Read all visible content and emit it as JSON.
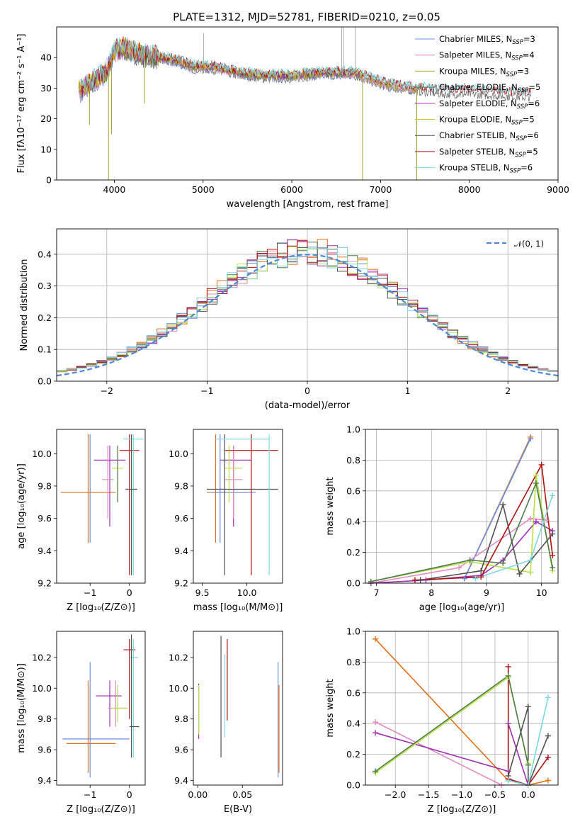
{
  "title": "PLATE=1312, MJD=52781, FIBERID=0210, z=0.05",
  "colors": {
    "chabrier_miles": "#6c8ee0",
    "salpeter_miles": "#e48ac0",
    "kroupa_miles": "#a8a020",
    "chabrier_elodie": "#4c7c4c",
    "salpeter_elodie": "#a030b0",
    "kroupa_elodie": "#e0c020",
    "chabrier_stelib": "#505050",
    "salpeter_stelib": "#b01010",
    "kroupa_stelib": "#7cd8e0",
    "orange": "#e0701a",
    "lime": "#b8e040",
    "gaussian": "#4f86d8",
    "grid": "#b0b0b0"
  },
  "chart_data": [
    {
      "id": "spectrum",
      "type": "line",
      "xlabel": "wavelength [Angstrom, rest frame]",
      "ylabel": "Flux [fλ10⁻¹⁷ erg cm⁻² s⁻¹ A⁻¹]",
      "xlim": [
        3350,
        9000
      ],
      "ylim": [
        0,
        50
      ],
      "xticks": [
        "4000",
        "5000",
        "6000",
        "7000",
        "8000",
        "9000"
      ],
      "yticks": [
        "0",
        "10",
        "20",
        "30",
        "40"
      ],
      "grid": false,
      "legend_position": "top-right",
      "legend": [
        {
          "label": "Chabrier MILES, N",
          "sub": "SSP",
          "n": "=3",
          "color": "chabrier_miles"
        },
        {
          "label": "Salpeter MILES, N",
          "sub": "SSP",
          "n": "=4",
          "color": "salpeter_miles"
        },
        {
          "label": "Kroupa MILES, N",
          "sub": "SSP",
          "n": "=3",
          "color": "kroupa_miles"
        },
        {
          "label": "Chabrier ELODIE, N",
          "sub": "SSP",
          "n": "=5",
          "color": "chabrier_elodie"
        },
        {
          "label": "Salpeter ELODIE, N",
          "sub": "SSP",
          "n": "=6",
          "color": "salpeter_elodie"
        },
        {
          "label": "Kroupa ELODIE, N",
          "sub": "SSP",
          "n": "=5",
          "color": "kroupa_elodie"
        },
        {
          "label": "Chabrier STELIB, N",
          "sub": "SSP",
          "n": "=6",
          "color": "chabrier_stelib"
        },
        {
          "label": "Salpeter STELIB, N",
          "sub": "SSP",
          "n": "=5",
          "color": "salpeter_stelib"
        },
        {
          "label": "Kroupa STELIB, N",
          "sub": "SSP",
          "n": "=6",
          "color": "kroupa_stelib"
        }
      ],
      "continuum": {
        "x": [
          3600,
          3750,
          3900,
          4000,
          4100,
          4300,
          4500,
          4700,
          4900,
          5100,
          5400,
          5700,
          6000,
          6300,
          6500,
          6700,
          6900,
          7100,
          7400,
          7700,
          8000,
          8300,
          8600,
          8700
        ],
        "y": [
          29,
          32,
          35,
          42,
          43,
          41,
          40,
          39,
          37,
          37,
          35,
          34,
          34,
          35,
          35,
          35,
          33,
          31,
          30,
          29,
          29,
          28.5,
          28,
          28
        ]
      },
      "dips": [
        {
          "x": 3934,
          "y": 0
        },
        {
          "x": 6797,
          "y": 0
        },
        {
          "x": 7408,
          "y": 0
        },
        {
          "x": 3968,
          "y": 15
        },
        {
          "x": 4340,
          "y": 25
        },
        {
          "x": 3720,
          "y": 18
        }
      ],
      "spikes": [
        {
          "x": 6563,
          "y": 50
        },
        {
          "x": 6583,
          "y": 50
        },
        {
          "x": 6717,
          "y": 50
        },
        {
          "x": 5007,
          "y": 48
        }
      ]
    },
    {
      "id": "residual-histogram",
      "type": "step",
      "xlabel": "(data-model)/error",
      "ylabel": "Normed distribution",
      "xlim": [
        -2.5,
        2.5
      ],
      "ylim": [
        0,
        0.48
      ],
      "xticks": [
        "−2",
        "−1",
        "0",
        "1",
        "2"
      ],
      "yticks": [
        "0.0",
        "0.1",
        "0.2",
        "0.3",
        "0.4"
      ],
      "grid": true,
      "legend_position": "top-right",
      "legend": [
        {
          "label": "𝒩(0, 1)",
          "color": "gaussian",
          "dashed": true
        }
      ],
      "bin_width": 0.1,
      "series_colors": [
        "chabrier_miles",
        "salpeter_miles",
        "orange",
        "chabrier_elodie",
        "salpeter_elodie",
        "lime",
        "chabrier_stelib",
        "salpeter_stelib",
        "kroupa_stelib"
      ]
    },
    {
      "id": "age-vs-Z",
      "type": "errorbar",
      "xlabel": "Z [log₁₀(Z/Z⊙)]",
      "ylabel": "age  [log₁₀(age/yr)]",
      "xlim": [
        -1.85,
        0.4
      ],
      "ylim": [
        9.2,
        10.15
      ],
      "xticks": [
        "−1",
        "0"
      ],
      "yticks": [
        "9.2",
        "9.4",
        "9.6",
        "9.8",
        "10.0"
      ],
      "grid": false,
      "points": [
        {
          "x": -1.0,
          "xerr": 0.0,
          "y": 9.76,
          "ylo": 9.45,
          "yhi": 10.12,
          "color": "chabrier_miles"
        },
        {
          "x": -1.05,
          "xerr": 0.7,
          "y": 9.76,
          "ylo": 9.45,
          "yhi": 10.12,
          "color": "orange"
        },
        {
          "x": -0.5,
          "xerr": 0.4,
          "y": 9.96,
          "ylo": 9.55,
          "yhi": 10.05,
          "color": "salpeter_elodie"
        },
        {
          "x": -0.55,
          "xerr": 0.15,
          "y": 9.84,
          "ylo": 9.6,
          "yhi": 10.05,
          "color": "salpeter_miles"
        },
        {
          "x": -0.3,
          "xerr": 0.15,
          "y": 9.91,
          "ylo": 9.7,
          "yhi": 10.05,
          "color": "lime"
        },
        {
          "x": 0.0,
          "xerr": 0.25,
          "y": 10.02,
          "ylo": 9.25,
          "yhi": 10.12,
          "color": "salpeter_stelib"
        },
        {
          "x": 0.1,
          "xerr": 0.25,
          "y": 10.09,
          "ylo": 9.25,
          "yhi": 10.12,
          "color": "kroupa_stelib"
        },
        {
          "x": 0.05,
          "xerr": 0.15,
          "y": 9.78,
          "ylo": 9.25,
          "yhi": 10.12,
          "color": "chabrier_stelib"
        },
        {
          "x": -0.3,
          "xerr": 0.0,
          "y": 9.91,
          "ylo": 9.7,
          "yhi": 10.05,
          "color": "chabrier_elodie"
        }
      ]
    },
    {
      "id": "age-vs-mass",
      "type": "errorbar",
      "xlabel": "mass [log₁₀(M/M⊙)]",
      "ylabel": "",
      "xlim": [
        9.4,
        10.4
      ],
      "ylim": [
        9.2,
        10.15
      ],
      "xticks": [
        "9.5",
        "10.0"
      ],
      "yticks": [
        "9.2",
        "9.4",
        "9.6",
        "9.8",
        "10.0"
      ],
      "grid": false,
      "points": [
        {
          "x": 9.65,
          "xlo": 9.55,
          "xhi": 10.0,
          "y": 9.76,
          "ylo": 9.45,
          "yhi": 10.12,
          "color": "orange"
        },
        {
          "x": 9.7,
          "xlo": 9.6,
          "xhi": 10.1,
          "y": 9.76,
          "ylo": 9.45,
          "yhi": 10.12,
          "color": "chabrier_miles"
        },
        {
          "x": 9.85,
          "xlo": 9.7,
          "xhi": 10.05,
          "y": 9.96,
          "ylo": 9.55,
          "yhi": 10.05,
          "color": "salpeter_elodie"
        },
        {
          "x": 9.85,
          "xlo": 9.75,
          "xhi": 9.95,
          "y": 9.84,
          "ylo": 9.6,
          "yhi": 10.05,
          "color": "salpeter_miles"
        },
        {
          "x": 9.8,
          "xlo": 9.75,
          "xhi": 9.95,
          "y": 9.91,
          "ylo": 9.7,
          "yhi": 10.05,
          "color": "lime"
        },
        {
          "x": 9.75,
          "xlo": 9.55,
          "xhi": 10.35,
          "y": 9.78,
          "ylo": 9.25,
          "yhi": 10.12,
          "color": "chabrier_stelib"
        },
        {
          "x": 10.05,
          "xlo": 9.75,
          "xhi": 10.35,
          "y": 10.02,
          "ylo": 9.25,
          "yhi": 10.12,
          "color": "salpeter_stelib"
        },
        {
          "x": 10.25,
          "xlo": 9.65,
          "xhi": 10.25,
          "y": 10.09,
          "ylo": 9.25,
          "yhi": 10.12,
          "color": "kroupa_stelib"
        }
      ]
    },
    {
      "id": "mass-weight-vs-age",
      "type": "line",
      "xlabel": "age  [log₁₀(age/yr)]",
      "ylabel": "mass weight",
      "xlim": [
        6.8,
        10.3
      ],
      "ylim": [
        0.0,
        1.0
      ],
      "xticks": [
        "7",
        "8",
        "9",
        "10"
      ],
      "yticks": [
        "0.0",
        "0.2",
        "0.4",
        "0.6",
        "0.8",
        "1.0"
      ],
      "grid": true,
      "series": [
        {
          "color": "orange",
          "x": [
            8.6,
            9.8
          ],
          "y": [
            0.03,
            0.95
          ]
        },
        {
          "color": "chabrier_miles",
          "x": [
            8.6,
            9.8
          ],
          "y": [
            0.03,
            0.94
          ]
        },
        {
          "color": "salpeter_miles",
          "x": [
            6.9,
            8.5,
            9.8,
            10.1
          ],
          "y": [
            0.0,
            0.1,
            0.42,
            0.41
          ]
        },
        {
          "color": "salpeter_elodie",
          "x": [
            6.9,
            7.9,
            8.9,
            9.3,
            9.9,
            10.2
          ],
          "y": [
            0.0,
            0.02,
            0.05,
            0.15,
            0.4,
            0.34
          ]
        },
        {
          "color": "lime",
          "x": [
            6.9,
            8.7,
            9.8,
            9.9,
            10.2
          ],
          "y": [
            0.01,
            0.14,
            0.07,
            0.7,
            0.08
          ]
        },
        {
          "color": "chabrier_elodie",
          "x": [
            6.9,
            8.7,
            9.3,
            9.9,
            10.2
          ],
          "y": [
            0.01,
            0.15,
            0.13,
            0.65,
            0.1
          ]
        },
        {
          "color": "chabrier_stelib",
          "x": [
            7.8,
            8.9,
            9.3,
            9.6,
            10.2
          ],
          "y": [
            0.02,
            0.08,
            0.51,
            0.06,
            0.32
          ]
        },
        {
          "color": "salpeter_stelib",
          "x": [
            7.7,
            8.9,
            10.0,
            10.2
          ],
          "y": [
            0.02,
            0.04,
            0.77,
            0.18
          ]
        },
        {
          "color": "kroupa_stelib",
          "x": [
            8.8,
            9.8,
            10.2
          ],
          "y": [
            0.03,
            0.15,
            0.57
          ]
        }
      ]
    },
    {
      "id": "mass-vs-Z",
      "type": "errorbar",
      "xlabel": "Z [log₁₀(Z/Z⊙)]",
      "ylabel": "mass [log₁₀(M/M⊙)]",
      "xlim": [
        -1.85,
        0.4
      ],
      "ylim": [
        9.37,
        10.37
      ],
      "xticks": [
        "−1",
        "0"
      ],
      "yticks": [
        "9.4",
        "9.6",
        "9.8",
        "10.0",
        "10.2"
      ],
      "grid": false,
      "points": [
        {
          "x": -1.0,
          "xlo": -1.7,
          "xhi": 0.0,
          "y": 9.67,
          "ylo": 9.42,
          "yhi": 10.17,
          "color": "chabrier_miles"
        },
        {
          "x": -1.05,
          "xlo": -1.6,
          "xhi": -0.35,
          "y": 9.64,
          "ylo": 9.45,
          "yhi": 10.05,
          "color": "orange"
        },
        {
          "x": -0.5,
          "xlo": -0.85,
          "xhi": -0.2,
          "y": 9.95,
          "ylo": 9.75,
          "yhi": 10.05,
          "color": "salpeter_elodie"
        },
        {
          "x": -0.35,
          "xlo": -0.55,
          "xhi": -0.1,
          "y": 9.87,
          "ylo": 9.75,
          "yhi": 10.05,
          "color": "salpeter_miles"
        },
        {
          "x": -0.3,
          "xlo": -0.45,
          "xhi": -0.05,
          "y": 9.87,
          "ylo": 9.78,
          "yhi": 10.02,
          "color": "lime"
        },
        {
          "x": 0.0,
          "xlo": -0.15,
          "xhi": 0.15,
          "y": 10.25,
          "ylo": 9.8,
          "yhi": 10.32,
          "color": "salpeter_stelib"
        },
        {
          "x": 0.1,
          "xlo": 0.0,
          "xhi": 0.22,
          "y": 10.2,
          "ylo": 9.55,
          "yhi": 10.32,
          "color": "kroupa_stelib"
        },
        {
          "x": 0.05,
          "xlo": 0.0,
          "xhi": 0.25,
          "y": 9.75,
          "ylo": 9.55,
          "yhi": 10.35,
          "color": "chabrier_stelib"
        }
      ]
    },
    {
      "id": "mass-vs-EBV",
      "type": "errorbar",
      "xlabel": "E(B-V)",
      "ylabel": "",
      "xlim": [
        -0.005,
        0.095
      ],
      "ylim": [
        9.37,
        10.37
      ],
      "xticks": [
        "0.00",
        "0.05"
      ],
      "yticks": [
        "9.4",
        "9.6",
        "9.8",
        "10.0",
        "10.2"
      ],
      "grid": false,
      "points": [
        {
          "x": 0.001,
          "y": 9.86,
          "ylo": 9.67,
          "yhi": 10.03,
          "color": "salpeter_elodie"
        },
        {
          "x": 0.001,
          "y": 9.86,
          "ylo": 9.7,
          "yhi": 10.02,
          "color": "lime"
        },
        {
          "x": 0.026,
          "y": 9.95,
          "ylo": 9.55,
          "yhi": 10.34,
          "color": "chabrier_stelib"
        },
        {
          "x": 0.03,
          "y": 9.95,
          "ylo": 9.68,
          "yhi": 10.22,
          "color": "kroupa_stelib"
        },
        {
          "x": 0.033,
          "y": 10.05,
          "ylo": 9.79,
          "yhi": 10.32,
          "color": "salpeter_stelib"
        },
        {
          "x": 0.09,
          "y": 9.8,
          "ylo": 9.42,
          "yhi": 10.17,
          "color": "chabrier_miles"
        },
        {
          "x": 0.091,
          "y": 9.7,
          "ylo": 9.45,
          "yhi": 10.02,
          "color": "orange"
        }
      ]
    },
    {
      "id": "mass-weight-vs-Z",
      "type": "line",
      "xlabel": "Z [log₁₀(Z/Z⊙)]",
      "ylabel": "mass weight",
      "xlim": [
        -2.45,
        0.45
      ],
      "ylim": [
        0.0,
        1.0
      ],
      "xticks": [
        "−2.0",
        "−1.5",
        "−1.0",
        "−0.5",
        "0.0"
      ],
      "yticks": [
        "0.0",
        "0.2",
        "0.4",
        "0.6",
        "0.8",
        "1.0"
      ],
      "grid": true,
      "series": [
        {
          "color": "orange",
          "x": [
            -2.3,
            -0.3,
            0.0,
            0.3
          ],
          "y": [
            0.95,
            0.03,
            0.0,
            0.03
          ]
        },
        {
          "color": "salpeter_miles",
          "x": [
            -2.3,
            -0.4,
            0.0
          ],
          "y": [
            0.41,
            0.0,
            0.0
          ]
        },
        {
          "color": "salpeter_elodie",
          "x": [
            -2.3,
            -0.3,
            -0.3,
            0.0
          ],
          "y": [
            0.34,
            0.09,
            0.4,
            0.0
          ]
        },
        {
          "color": "lime",
          "x": [
            -2.3,
            -0.3,
            0.0
          ],
          "y": [
            0.08,
            0.7,
            0.14
          ]
        },
        {
          "color": "chabrier_elodie",
          "x": [
            -2.3,
            -0.3,
            0.0
          ],
          "y": [
            0.09,
            0.71,
            0.13
          ]
        },
        {
          "color": "chabrier_stelib",
          "x": [
            -0.3,
            0.0,
            0.0,
            0.3
          ],
          "y": [
            0.06,
            0.51,
            0.0,
            0.32
          ]
        },
        {
          "color": "salpeter_stelib",
          "x": [
            -0.3,
            -0.3,
            0.0,
            0.3
          ],
          "y": [
            0.77,
            0.04,
            0.0,
            0.18
          ]
        },
        {
          "color": "kroupa_stelib",
          "x": [
            -0.3,
            0.0,
            0.3
          ],
          "y": [
            0.03,
            0.0,
            0.57
          ]
        }
      ]
    }
  ]
}
